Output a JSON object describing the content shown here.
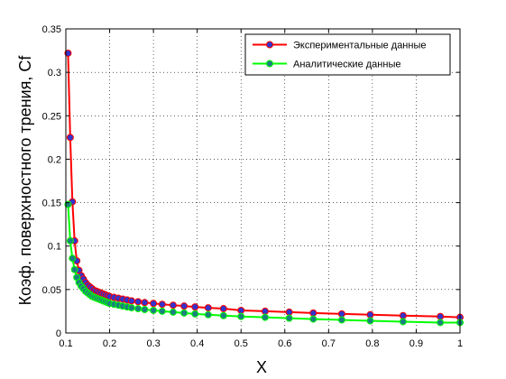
{
  "chart_data": {
    "type": "line",
    "title": "",
    "xlabel": "X",
    "ylabel": "Коэф. поверхностного трения, Cf",
    "xlim": [
      0.1,
      1
    ],
    "ylim": [
      0,
      0.35
    ],
    "grid": true,
    "legend_position": "top-right",
    "x_ticks": [
      0.1,
      0.2,
      0.3,
      0.4,
      0.5,
      0.6,
      0.7,
      0.8,
      0.9,
      1
    ],
    "x_tick_labels": [
      "0.1",
      "0.2",
      "0.3",
      "0.4",
      "0.5",
      "0.6",
      "0.7",
      "0.8",
      "0.9",
      "1"
    ],
    "y_ticks": [
      0,
      0.05,
      0.1,
      0.15,
      0.2,
      0.25,
      0.3,
      0.35
    ],
    "y_tick_labels": [
      "0",
      "0.05",
      "0.1",
      "0.15",
      "0.2",
      "0.25",
      "0.3",
      "0.35"
    ],
    "series": [
      {
        "name": "Экспериментальные данные",
        "color": "#ff0000",
        "marker_color": "#3333cc",
        "x": [
          0.105,
          0.11,
          0.115,
          0.12,
          0.125,
          0.13,
          0.135,
          0.14,
          0.145,
          0.15,
          0.155,
          0.16,
          0.165,
          0.17,
          0.175,
          0.18,
          0.185,
          0.19,
          0.195,
          0.2,
          0.21,
          0.22,
          0.23,
          0.24,
          0.25,
          0.265,
          0.28,
          0.3,
          0.32,
          0.345,
          0.37,
          0.395,
          0.425,
          0.46,
          0.5,
          0.555,
          0.61,
          0.665,
          0.73,
          0.795,
          0.87,
          0.955,
          1.0
        ],
        "y": [
          0.322,
          0.225,
          0.151,
          0.106,
          0.083,
          0.072,
          0.066,
          0.062,
          0.058,
          0.055,
          0.053,
          0.051,
          0.049,
          0.048,
          0.047,
          0.046,
          0.045,
          0.044,
          0.043,
          0.042,
          0.041,
          0.04,
          0.039,
          0.038,
          0.037,
          0.036,
          0.035,
          0.034,
          0.033,
          0.032,
          0.031,
          0.03,
          0.029,
          0.028,
          0.026,
          0.025,
          0.024,
          0.023,
          0.022,
          0.021,
          0.02,
          0.019,
          0.018
        ]
      },
      {
        "name": "Аналитические данные",
        "color": "#00ff00",
        "marker_color": "#1a8080",
        "x": [
          0.105,
          0.11,
          0.115,
          0.12,
          0.125,
          0.13,
          0.135,
          0.14,
          0.145,
          0.15,
          0.155,
          0.16,
          0.165,
          0.17,
          0.175,
          0.18,
          0.185,
          0.19,
          0.195,
          0.2,
          0.21,
          0.22,
          0.23,
          0.24,
          0.25,
          0.265,
          0.28,
          0.3,
          0.32,
          0.345,
          0.37,
          0.395,
          0.425,
          0.46,
          0.5,
          0.555,
          0.61,
          0.665,
          0.73,
          0.795,
          0.87,
          0.955,
          1.0
        ],
        "y": [
          0.148,
          0.106,
          0.086,
          0.073,
          0.064,
          0.058,
          0.054,
          0.051,
          0.048,
          0.046,
          0.044,
          0.042,
          0.041,
          0.04,
          0.039,
          0.038,
          0.037,
          0.036,
          0.035,
          0.034,
          0.033,
          0.032,
          0.031,
          0.03,
          0.029,
          0.028,
          0.027,
          0.026,
          0.025,
          0.024,
          0.023,
          0.022,
          0.021,
          0.02,
          0.019,
          0.018,
          0.017,
          0.016,
          0.015,
          0.014,
          0.013,
          0.012,
          0.012
        ]
      }
    ]
  }
}
